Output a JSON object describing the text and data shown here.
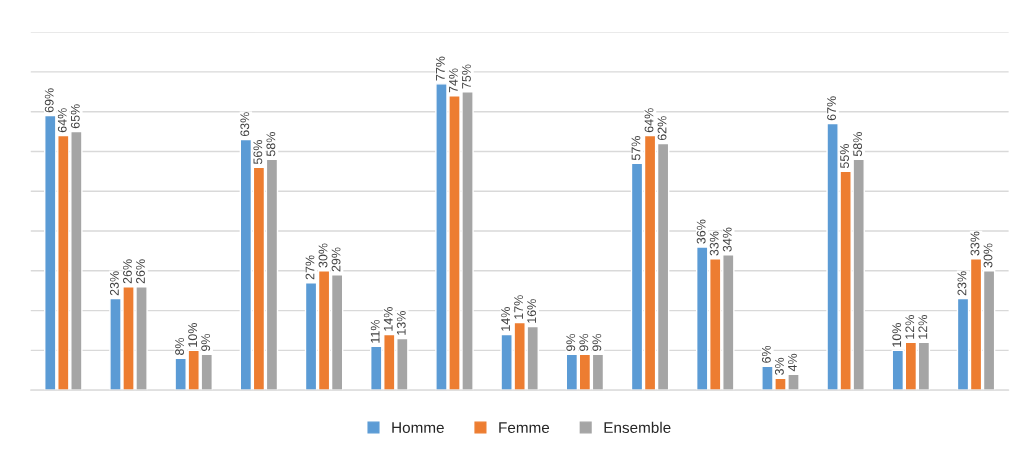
{
  "chart_data": {
    "type": "bar",
    "categories": [
      null,
      null,
      null,
      null,
      null,
      null,
      null,
      null,
      null,
      null,
      null,
      null,
      null,
      null,
      null
    ],
    "series": [
      {
        "name": "Homme",
        "color": "#5b9bd5",
        "values": [
          69,
          23,
          8,
          63,
          27,
          11,
          77,
          14,
          9,
          57,
          36,
          6,
          67,
          10,
          23
        ],
        "value_labels": [
          "69%",
          "23%",
          "8%",
          "63%",
          "27%",
          "11%",
          "77%",
          "14%",
          "9%",
          "57%",
          "36%",
          "6%",
          "67%",
          "10%",
          "23%"
        ]
      },
      {
        "name": "Femme",
        "color": "#ed7d31",
        "values": [
          64,
          26,
          10,
          56,
          30,
          14,
          74,
          17,
          9,
          64,
          33,
          3,
          55,
          12,
          33
        ],
        "value_labels": [
          "64%",
          "26%",
          "10%",
          "56%",
          "30%",
          "14%",
          "74%",
          "17%",
          "9%",
          "64%",
          "33%",
          "3%",
          "55%",
          "12%",
          "33%"
        ]
      },
      {
        "name": "Ensemble",
        "color": "#a5a5a5",
        "values": [
          65,
          26,
          9,
          58,
          29,
          13,
          75,
          16,
          9,
          62,
          34,
          4,
          58,
          12,
          30
        ],
        "value_labels": [
          "65%",
          "26%",
          "9%",
          "58%",
          "29%",
          "13%",
          "75%",
          "16%",
          "9%",
          "62%",
          "34%",
          "4%",
          "58%",
          "12%",
          "30%"
        ]
      }
    ],
    "ylim": [
      0,
      90
    ],
    "yticks": [
      {
        "value": 0,
        "label": null
      },
      {
        "value": 10,
        "label": null
      },
      {
        "value": 20,
        "label": null
      },
      {
        "value": 30,
        "label": null
      },
      {
        "value": 40,
        "label": null
      },
      {
        "value": 50,
        "label": null
      },
      {
        "value": 60,
        "label": null
      },
      {
        "value": 70,
        "label": null
      },
      {
        "value": 80,
        "label": null
      },
      {
        "value": 90,
        "label": null
      }
    ],
    "grid": "y",
    "legend": "bottom"
  }
}
